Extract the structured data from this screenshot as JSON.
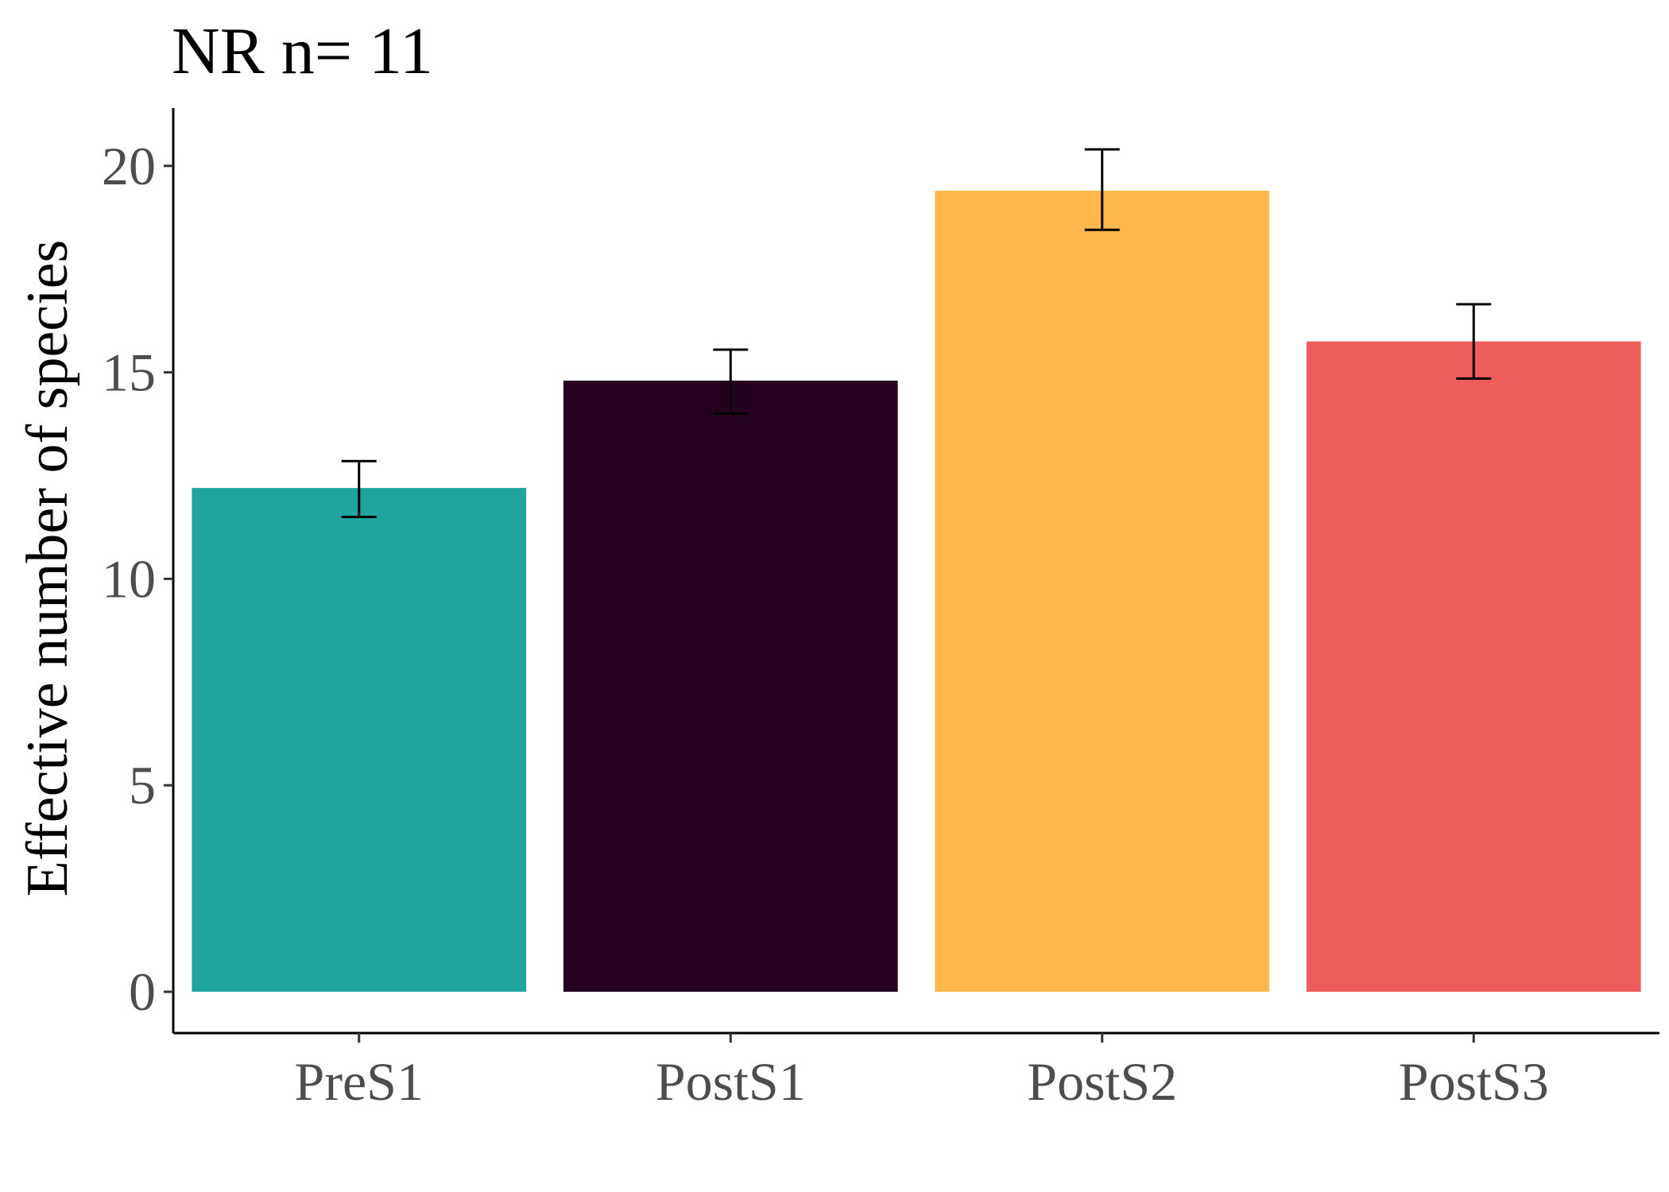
{
  "chart_data": {
    "type": "bar",
    "title": "NR  n= 11",
    "xlabel": "",
    "ylabel": "Effective number of species",
    "categories": [
      "PreS1",
      "PostS1",
      "PostS2",
      "PostS3"
    ],
    "values": [
      12.2,
      14.8,
      19.4,
      15.75
    ],
    "error_low": [
      11.5,
      14.0,
      18.45,
      14.85
    ],
    "error_high": [
      12.85,
      15.55,
      20.4,
      16.65
    ],
    "colors": [
      "#21a39f",
      "#25001f",
      "#ffb84b",
      "#ee5c5c"
    ],
    "ylim": [
      -1.0,
      21.4
    ],
    "yticks": [
      0,
      5,
      10,
      15,
      20
    ],
    "grid": false,
    "legend": "none"
  }
}
